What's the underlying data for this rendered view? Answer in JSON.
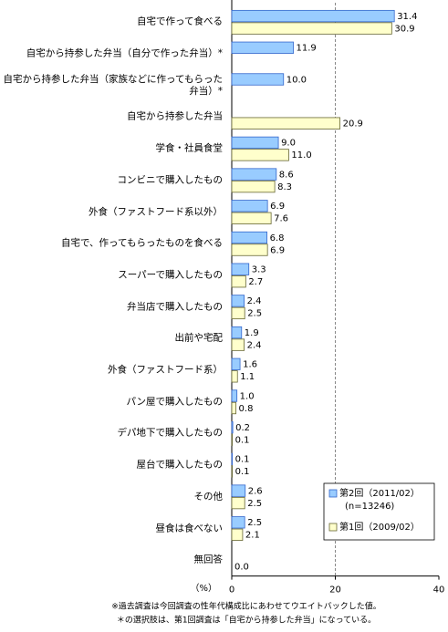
{
  "chart_data": {
    "type": "hbar",
    "categories": [
      "自宅で作って食べる",
      "自宅から持参した弁当（自分で作った弁当）*",
      "自宅から持参した弁当（家族などに作ってもらった弁当）*",
      "自宅から持参した弁当",
      "学食・社員食堂",
      "コンビニで購入したもの",
      "外食（ファストフード系以外）",
      "自宅で、作ってもらったものを食べる",
      "スーパーで購入したもの",
      "弁当店で購入したもの",
      "出前や宅配",
      "外食（ファストフード系）",
      "パン屋で購入したもの",
      "デパ地下で購入したもの",
      "屋台で購入したもの",
      "その他",
      "昼食は食べない",
      "無回答"
    ],
    "series": [
      {
        "name": "第2回（2011/02）",
        "note": "(n=13246)",
        "color": "#99ccff",
        "stroke": "#3366cc",
        "values": [
          31.4,
          11.9,
          10.0,
          null,
          9.0,
          8.6,
          6.9,
          6.8,
          3.3,
          2.4,
          1.9,
          1.6,
          1.0,
          0.2,
          0.1,
          2.6,
          2.5,
          null
        ],
        "value_labels": [
          "31.4",
          "11.9",
          "10.0",
          null,
          "9.0",
          "8.6",
          "6.9",
          "6.8",
          "3.3",
          "2.4",
          "1.9",
          "1.6",
          "1.0",
          "0.2",
          "0.1",
          "2.6",
          "2.5",
          null
        ]
      },
      {
        "name": "第1回（2009/02）",
        "color": "#ffffcc",
        "stroke": "#666633",
        "values": [
          30.9,
          null,
          null,
          20.9,
          11.0,
          8.3,
          7.6,
          6.9,
          2.7,
          2.5,
          2.4,
          1.1,
          0.8,
          0.1,
          0.1,
          2.5,
          2.1,
          0.0
        ],
        "value_labels": [
          "30.9",
          null,
          null,
          "20.9",
          "11.0",
          "8.3",
          "7.6",
          "6.9",
          "2.7",
          "2.5",
          "2.4",
          "1.1",
          "0.8",
          "0.1",
          "0.1",
          "2.5",
          "2.1",
          "0.0"
        ]
      }
    ],
    "xlabel": "（%）",
    "xlim": [
      0,
      40
    ],
    "xticks": [
      0,
      20,
      40
    ],
    "grid": true,
    "notes": [
      "※過去調査は今回調査の性年代構成比にあわせてウエイトバックした値。",
      "＊の選択肢は、第1回調査は「自宅から持参した弁当」になっている。"
    ]
  }
}
